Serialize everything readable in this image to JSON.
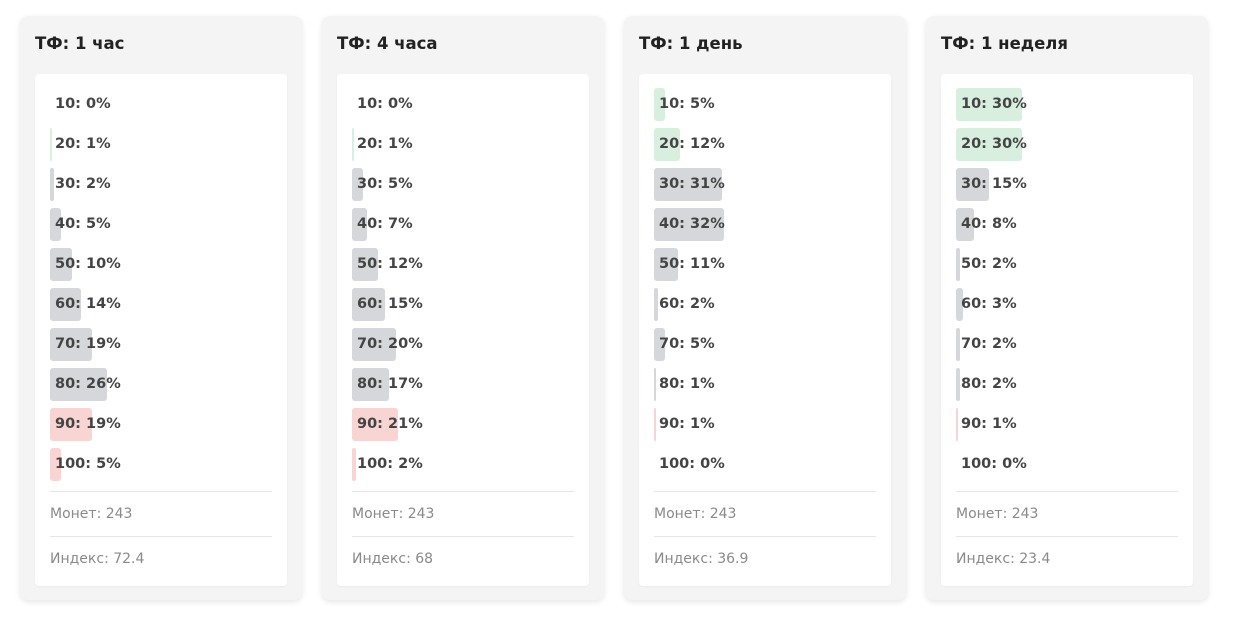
{
  "cards": [
    {
      "title": "ТФ: 1 час",
      "bins": [
        {
          "label": "10: 0%",
          "pct": 0,
          "tone": "up"
        },
        {
          "label": "20: 1%",
          "pct": 1,
          "tone": "up"
        },
        {
          "label": "30: 2%",
          "pct": 2,
          "tone": "mid"
        },
        {
          "label": "40: 5%",
          "pct": 5,
          "tone": "mid"
        },
        {
          "label": "50: 10%",
          "pct": 10,
          "tone": "mid"
        },
        {
          "label": "60: 14%",
          "pct": 14,
          "tone": "mid"
        },
        {
          "label": "70: 19%",
          "pct": 19,
          "tone": "mid"
        },
        {
          "label": "80: 26%",
          "pct": 26,
          "tone": "mid"
        },
        {
          "label": "90: 19%",
          "pct": 19,
          "tone": "down"
        },
        {
          "label": "100: 5%",
          "pct": 5,
          "tone": "down"
        }
      ],
      "coins": "Монет: 243",
      "index": "Индекс: 72.4"
    },
    {
      "title": "ТФ: 4 часа",
      "bins": [
        {
          "label": "10: 0%",
          "pct": 0,
          "tone": "up"
        },
        {
          "label": "20: 1%",
          "pct": 1,
          "tone": "up"
        },
        {
          "label": "30: 5%",
          "pct": 5,
          "tone": "mid"
        },
        {
          "label": "40: 7%",
          "pct": 7,
          "tone": "mid"
        },
        {
          "label": "50: 12%",
          "pct": 12,
          "tone": "mid"
        },
        {
          "label": "60: 15%",
          "pct": 15,
          "tone": "mid"
        },
        {
          "label": "70: 20%",
          "pct": 20,
          "tone": "mid"
        },
        {
          "label": "80: 17%",
          "pct": 17,
          "tone": "mid"
        },
        {
          "label": "90: 21%",
          "pct": 21,
          "tone": "down"
        },
        {
          "label": "100: 2%",
          "pct": 2,
          "tone": "down"
        }
      ],
      "coins": "Монет: 243",
      "index": "Индекс: 68"
    },
    {
      "title": "ТФ: 1 день",
      "bins": [
        {
          "label": "10: 5%",
          "pct": 5,
          "tone": "up"
        },
        {
          "label": "20: 12%",
          "pct": 12,
          "tone": "up"
        },
        {
          "label": "30: 31%",
          "pct": 31,
          "tone": "mid"
        },
        {
          "label": "40: 32%",
          "pct": 32,
          "tone": "mid"
        },
        {
          "label": "50: 11%",
          "pct": 11,
          "tone": "mid"
        },
        {
          "label": "60: 2%",
          "pct": 2,
          "tone": "mid"
        },
        {
          "label": "70: 5%",
          "pct": 5,
          "tone": "mid"
        },
        {
          "label": "80: 1%",
          "pct": 1,
          "tone": "mid"
        },
        {
          "label": "90: 1%",
          "pct": 1,
          "tone": "down"
        },
        {
          "label": "100: 0%",
          "pct": 0,
          "tone": "down"
        }
      ],
      "coins": "Монет: 243",
      "index": "Индекс: 36.9"
    },
    {
      "title": "ТФ: 1 неделя",
      "bins": [
        {
          "label": "10: 30%",
          "pct": 30,
          "tone": "up"
        },
        {
          "label": "20: 30%",
          "pct": 30,
          "tone": "up"
        },
        {
          "label": "30: 15%",
          "pct": 15,
          "tone": "mid"
        },
        {
          "label": "40: 8%",
          "pct": 8,
          "tone": "mid"
        },
        {
          "label": "50: 2%",
          "pct": 2,
          "tone": "mid"
        },
        {
          "label": "60: 3%",
          "pct": 3,
          "tone": "mid"
        },
        {
          "label": "70: 2%",
          "pct": 2,
          "tone": "mid"
        },
        {
          "label": "80: 2%",
          "pct": 2,
          "tone": "mid"
        },
        {
          "label": "90: 1%",
          "pct": 1,
          "tone": "down"
        },
        {
          "label": "100: 0%",
          "pct": 0,
          "tone": "down"
        }
      ],
      "coins": "Монет: 243",
      "index": "Индекс: 23.4"
    }
  ],
  "colors": {
    "up": "#d8efe0",
    "mid": "#d5d7db",
    "down": "#f8d4d2"
  }
}
